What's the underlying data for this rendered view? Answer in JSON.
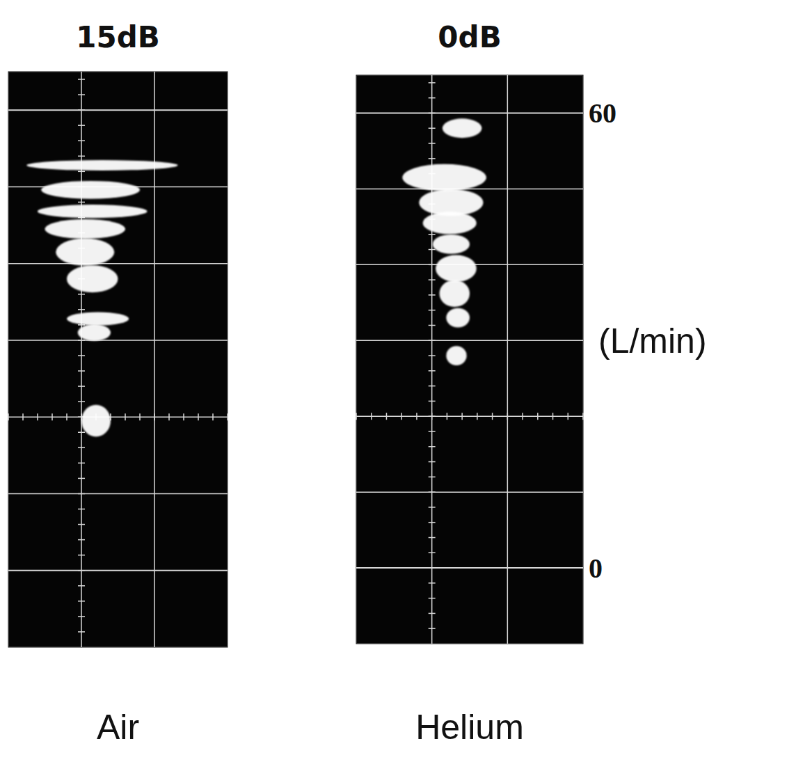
{
  "chart_data": [
    {
      "type": "band",
      "title": "Air",
      "subtitle": "15dB",
      "ylim": [
        -10,
        65
      ],
      "yticks": [
        0,
        60
      ],
      "xlim": [
        -1,
        2
      ],
      "xticks": [
        0,
        1
      ],
      "grid": true,
      "tick_labels": false,
      "color": "#ffffff",
      "series": [
        {
          "values": [
            52.8,
            49.6,
            46.8,
            44.5,
            41.5,
            38.0,
            32.8,
            31.0,
            19.5
          ],
          "spread": [
            0.4,
            0.9,
            0.6,
            1.0,
            1.5,
            1.5,
            0.6,
            0.8,
            1.8
          ],
          "x_left": [
            -0.75,
            -0.55,
            -0.6,
            -0.5,
            -0.35,
            -0.2,
            -0.2,
            -0.05,
            0.0
          ],
          "x_right": [
            1.32,
            0.8,
            0.9,
            0.6,
            0.45,
            0.5,
            0.65,
            0.4,
            0.4
          ]
        }
      ]
    },
    {
      "type": "band",
      "title": "Helium",
      "subtitle": "0dB",
      "ylabel": "(L/min)",
      "ylim": [
        -10,
        65
      ],
      "yticks": [
        0,
        60
      ],
      "xlim": [
        -1,
        2
      ],
      "xticks": [
        0,
        1
      ],
      "grid": true,
      "tick_labels": "y",
      "color": "#ffffff",
      "series": [
        {
          "values": [
            58.0,
            51.5,
            48.2,
            45.5,
            42.7,
            39.5,
            36.2,
            33.0,
            28.0
          ],
          "spread": [
            1.0,
            1.5,
            1.5,
            1.2,
            1.0,
            1.5,
            1.5,
            1.0,
            1.0
          ],
          "x_left": [
            0.14,
            -0.39,
            -0.17,
            -0.12,
            0.01,
            0.05,
            0.1,
            0.19,
            0.19
          ],
          "x_right": [
            0.66,
            0.72,
            0.68,
            0.59,
            0.5,
            0.59,
            0.5,
            0.5,
            0.46
          ]
        }
      ]
    }
  ]
}
